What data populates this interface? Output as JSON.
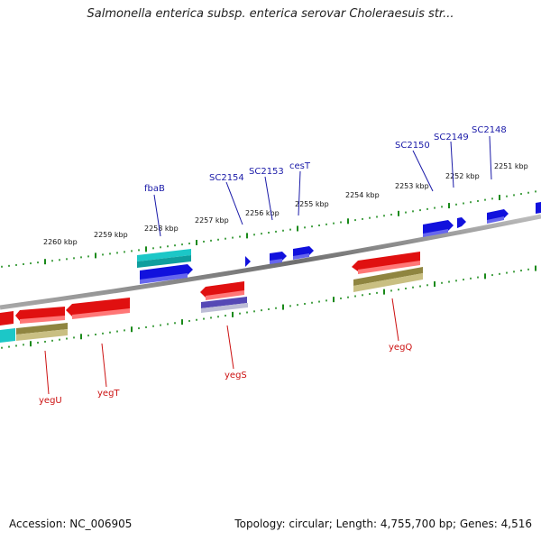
{
  "title": "Salmonella enterica subsp. enterica serovar Choleraesuis str...",
  "footer": {
    "accession": "Accession: NC_006905",
    "summary": "Topology: circular; Length: 4,755,700 bp; Genes: 4,516"
  },
  "colors": {
    "forward_gene": "#1111dd",
    "forward_gene_alt": "#11bbbb",
    "reverse_gene": "#e01010",
    "reverse_gene_alt_khaki": "#b8ad68",
    "reverse_gene_alt_cyan": "#1cc7c7",
    "reverse_gene_alt_purple": "#7b70c8",
    "backbone": "#8a8a8a",
    "ticks": "#1a8a1a",
    "label_blue": "#1a1aa8",
    "label_red": "#cc1111"
  },
  "kbp_ticks": [
    {
      "label": "2260 kbp"
    },
    {
      "label": "2259 kbp"
    },
    {
      "label": "2258 kbp"
    },
    {
      "label": "2257 kbp"
    },
    {
      "label": "2256 kbp"
    },
    {
      "label": "2255 kbp"
    },
    {
      "label": "2254 kbp"
    },
    {
      "label": "2253 kbp"
    },
    {
      "label": "2252 kbp"
    },
    {
      "label": "2251 kbp"
    }
  ],
  "forward_genes": [
    {
      "name": "fbaB"
    },
    {
      "name": "SC2154"
    },
    {
      "name": "SC2153"
    },
    {
      "name": "cesT"
    },
    {
      "name": "SC2150"
    },
    {
      "name": "SC2149"
    },
    {
      "name": "SC2148"
    }
  ],
  "reverse_genes": [
    {
      "name": "yegU"
    },
    {
      "name": "yegT"
    },
    {
      "name": "yegS"
    },
    {
      "name": "yegQ"
    }
  ]
}
